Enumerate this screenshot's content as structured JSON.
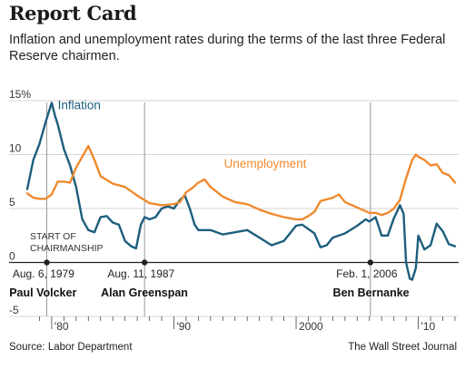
{
  "header": {
    "title": "Report Card",
    "subtitle": "Inflation and unemployment rates during the terms of the last three Federal Reserve chairmen."
  },
  "footer": {
    "source": "Source: Labor Department",
    "credit": "The Wall Street Journal"
  },
  "chart_data": {
    "type": "line",
    "xlim": [
      1978.0,
      2013.3
    ],
    "ylim": [
      -5,
      15
    ],
    "y_ticks": [
      15,
      10,
      5,
      0,
      -5
    ],
    "y_tick_labels": [
      "15%",
      "10",
      "5",
      "0",
      "-5"
    ],
    "x_ticks": [
      1980,
      1990,
      2000,
      2010
    ],
    "x_tick_labels": [
      "'80",
      "'90",
      "2000",
      "'10"
    ],
    "grid": "horizontal",
    "colors": {
      "inflation": "#1d5e7e",
      "unemployment": "#ef8a2e",
      "grid": "#c8c8c8",
      "marker": "#999999"
    },
    "start_label": [
      "START OF",
      "CHAIRMANSHIP"
    ],
    "series": [
      {
        "name": "Inflation",
        "color": "#1d5e7e",
        "x": [
          1978.0,
          1978.5,
          1979.0,
          1979.5,
          1980.0,
          1980.3,
          1980.5,
          1981.0,
          1981.5,
          1982.0,
          1982.5,
          1983.0,
          1983.5,
          1984.0,
          1984.5,
          1985.0,
          1985.5,
          1986.0,
          1986.5,
          1986.9,
          1987.3,
          1987.6,
          1988.0,
          1988.5,
          1989.0,
          1989.5,
          1990.0,
          1990.5,
          1990.9,
          1991.3,
          1991.7,
          1992.0,
          1993.0,
          1994.0,
          1995.0,
          1996.0,
          1997.0,
          1998.0,
          1999.0,
          2000.0,
          2000.5,
          2001.0,
          2001.5,
          2002.0,
          2002.5,
          2003.0,
          2004.0,
          2005.0,
          2005.7,
          2006.0,
          2006.5,
          2007.0,
          2007.5,
          2008.0,
          2008.5,
          2008.8,
          2009.0,
          2009.3,
          2009.5,
          2009.8,
          2010.0,
          2010.5,
          2011.0,
          2011.5,
          2012.0,
          2012.5,
          2013.0
        ],
        "y": [
          6.8,
          9.5,
          11.0,
          13.0,
          14.8,
          13.5,
          12.8,
          10.5,
          9.0,
          7.0,
          4.0,
          3.0,
          2.8,
          4.2,
          4.3,
          3.7,
          3.5,
          2.0,
          1.5,
          1.3,
          3.5,
          4.2,
          4.0,
          4.2,
          5.0,
          5.2,
          5.0,
          5.8,
          6.2,
          5.0,
          3.5,
          3.0,
          3.0,
          2.6,
          2.8,
          3.0,
          2.3,
          1.6,
          2.0,
          3.4,
          3.5,
          3.1,
          2.7,
          1.4,
          1.6,
          2.3,
          2.7,
          3.4,
          4.0,
          3.8,
          4.2,
          2.5,
          2.5,
          4.1,
          5.3,
          4.5,
          0.0,
          -1.5,
          -1.6,
          -0.5,
          2.5,
          1.2,
          1.6,
          3.6,
          2.9,
          1.7,
          1.5
        ]
      },
      {
        "name": "Unemployment",
        "color": "#ef8a2e",
        "x": [
          1978.0,
          1978.5,
          1979.0,
          1979.5,
          1980.0,
          1980.5,
          1981.0,
          1981.5,
          1982.0,
          1982.5,
          1983.0,
          1983.5,
          1984.0,
          1985.0,
          1986.0,
          1987.0,
          1988.0,
          1989.0,
          1990.0,
          1990.5,
          1991.0,
          1991.5,
          1992.0,
          1992.5,
          1993.0,
          1994.0,
          1995.0,
          1996.0,
          1997.0,
          1998.0,
          1999.0,
          2000.0,
          2000.5,
          2001.0,
          2001.5,
          2002.0,
          2003.0,
          2003.5,
          2004.0,
          2005.0,
          2006.0,
          2006.5,
          2007.0,
          2007.5,
          2008.0,
          2008.5,
          2009.0,
          2009.5,
          2009.8,
          2010.0,
          2010.5,
          2011.0,
          2011.5,
          2012.0,
          2012.5,
          2013.0
        ],
        "y": [
          6.4,
          6.0,
          5.9,
          5.9,
          6.3,
          7.5,
          7.5,
          7.4,
          8.8,
          9.8,
          10.8,
          9.5,
          8.0,
          7.3,
          7.0,
          6.2,
          5.5,
          5.3,
          5.4,
          5.6,
          6.5,
          6.9,
          7.4,
          7.7,
          7.0,
          6.1,
          5.6,
          5.4,
          4.9,
          4.5,
          4.2,
          4.0,
          4.0,
          4.3,
          4.7,
          5.7,
          6.0,
          6.3,
          5.6,
          5.1,
          4.6,
          4.6,
          4.4,
          4.6,
          5.0,
          5.8,
          7.8,
          9.5,
          10.0,
          9.8,
          9.5,
          9.0,
          9.1,
          8.3,
          8.1,
          7.4
        ]
      }
    ],
    "series_labels": [
      {
        "text": "Inflation",
        "x": 1980.5,
        "y": 14.2,
        "color": "#1d5e7e"
      },
      {
        "text": "Unemployment",
        "x": 1994.1,
        "y": 8.8,
        "color": "#ef8a2e"
      }
    ],
    "chairmen": [
      {
        "x": 1979.6,
        "date": "Aug. 6, 1979",
        "name": "Paul Volcker"
      },
      {
        "x": 1987.6,
        "date": "Aug. 11, 1987",
        "name": "Alan Greenspan"
      },
      {
        "x": 2006.08,
        "date": "Feb. 1, 2006",
        "name": "Ben Bernanke"
      }
    ]
  }
}
